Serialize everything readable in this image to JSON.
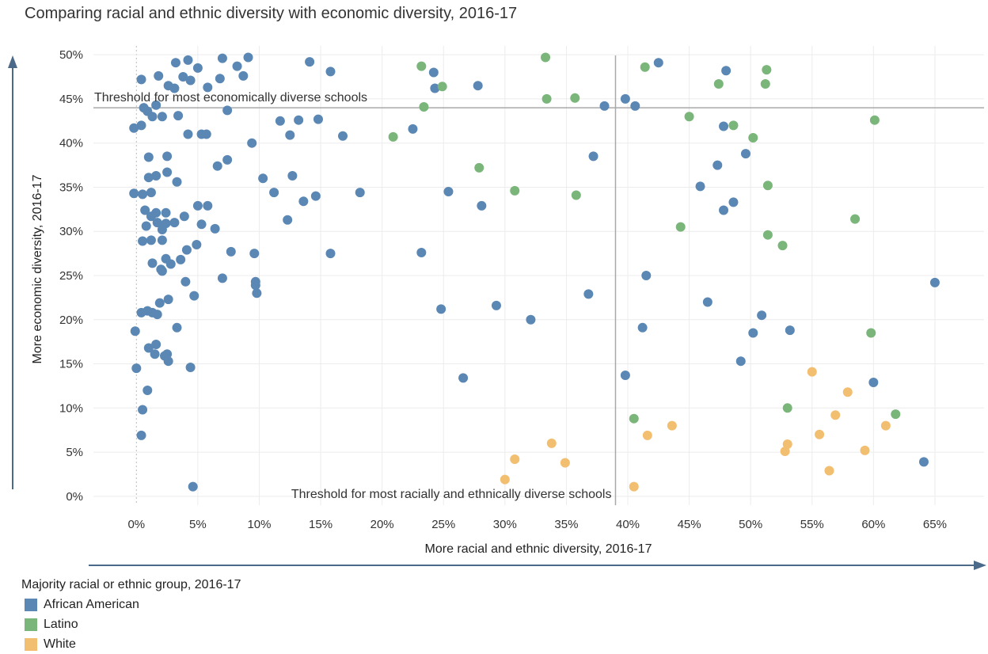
{
  "chart_data": {
    "type": "scatter",
    "title": "Comparing racial and ethnic diversity with economic diversity, 2016-17",
    "xlabel": "More racial and ethnic diversity, 2016-17",
    "ylabel": "More economic diversity, 2016-17",
    "x_ticks": [
      "0%",
      "5%",
      "10%",
      "15%",
      "20%",
      "25%",
      "30%",
      "35%",
      "40%",
      "45%",
      "50%",
      "55%",
      "60%",
      "65%"
    ],
    "y_ticks": [
      "0%",
      "5%",
      "10%",
      "15%",
      "20%",
      "25%",
      "30%",
      "35%",
      "40%",
      "45%",
      "50%"
    ],
    "xlim": [
      -3.5,
      69
    ],
    "ylim": [
      -1,
      51
    ],
    "grid": true,
    "thresholds": {
      "economic": {
        "value": 44,
        "label": "Threshold for most economically diverse schools"
      },
      "racial": {
        "value": 39,
        "label": "Threshold for most racially and ethnically diverse schools"
      }
    },
    "legend": {
      "title": "Majority racial or ethnic group, 2016-17",
      "position": "bottom-left"
    },
    "series": [
      {
        "name": "African American",
        "color": "#5a87b4",
        "points": [
          [
            0.4,
            47.2
          ],
          [
            1.8,
            47.6
          ],
          [
            3.2,
            49.1
          ],
          [
            4.2,
            49.4
          ],
          [
            5,
            48.5
          ],
          [
            7,
            49.6
          ],
          [
            8.2,
            48.7
          ],
          [
            9.1,
            49.7
          ],
          [
            8.7,
            47.6
          ],
          [
            6.8,
            47.3
          ],
          [
            4.4,
            47.1
          ],
          [
            3.8,
            47.5
          ],
          [
            2.6,
            46.5
          ],
          [
            3.1,
            46.2
          ],
          [
            5.8,
            46.3
          ],
          [
            14.1,
            49.2
          ],
          [
            15.8,
            48.1
          ],
          [
            24.2,
            48
          ],
          [
            42.5,
            49.1
          ],
          [
            48,
            48.2
          ],
          [
            24.3,
            46.2
          ],
          [
            27.8,
            46.5
          ],
          [
            0.6,
            44
          ],
          [
            0.9,
            43.6
          ],
          [
            1.3,
            43
          ],
          [
            2.1,
            43
          ],
          [
            3.4,
            43.1
          ],
          [
            1.6,
            44.3
          ],
          [
            7.4,
            43.7
          ],
          [
            -0.2,
            41.7
          ],
          [
            0.4,
            42
          ],
          [
            4.2,
            41
          ],
          [
            5.3,
            41
          ],
          [
            5.7,
            41
          ],
          [
            11.7,
            42.5
          ],
          [
            13.2,
            42.6
          ],
          [
            14.8,
            42.7
          ],
          [
            12.5,
            40.9
          ],
          [
            16.8,
            40.8
          ],
          [
            9.4,
            40
          ],
          [
            22.5,
            41.6
          ],
          [
            38.1,
            44.2
          ],
          [
            39.8,
            45
          ],
          [
            40.6,
            44.2
          ],
          [
            47.8,
            41.9
          ],
          [
            47.3,
            37.5
          ],
          [
            49.6,
            38.8
          ],
          [
            37.2,
            38.5
          ],
          [
            45.9,
            35.1
          ],
          [
            48.6,
            33.3
          ],
          [
            47.8,
            32.4
          ],
          [
            1,
            38.4
          ],
          [
            2.5,
            38.5
          ],
          [
            7.4,
            38.1
          ],
          [
            6.6,
            37.4
          ],
          [
            2.5,
            36.7
          ],
          [
            1.6,
            36.3
          ],
          [
            1,
            36.1
          ],
          [
            3.3,
            35.6
          ],
          [
            10.3,
            36
          ],
          [
            12.7,
            36.3
          ],
          [
            -0.2,
            34.3
          ],
          [
            0.5,
            34.2
          ],
          [
            1.2,
            34.4
          ],
          [
            11.2,
            34.4
          ],
          [
            14.6,
            34
          ],
          [
            13.6,
            33.4
          ],
          [
            18.2,
            34.4
          ],
          [
            25.4,
            34.5
          ],
          [
            28.1,
            32.9
          ],
          [
            0.7,
            32.4
          ],
          [
            1.2,
            31.7
          ],
          [
            1.6,
            32.1
          ],
          [
            2.4,
            32.1
          ],
          [
            5,
            32.9
          ],
          [
            5.8,
            32.9
          ],
          [
            3.9,
            31.7
          ],
          [
            1.7,
            31
          ],
          [
            3.1,
            31
          ],
          [
            2.4,
            30.9
          ],
          [
            5.3,
            30.8
          ],
          [
            0.8,
            30.6
          ],
          [
            2.1,
            30.2
          ],
          [
            6.4,
            30.3
          ],
          [
            12.3,
            31.3
          ],
          [
            0.5,
            28.9
          ],
          [
            1.2,
            29
          ],
          [
            2.1,
            29
          ],
          [
            4.9,
            28.5
          ],
          [
            4.1,
            27.9
          ],
          [
            7.7,
            27.7
          ],
          [
            9.6,
            27.5
          ],
          [
            15.8,
            27.5
          ],
          [
            23.2,
            27.6
          ],
          [
            2.4,
            26.9
          ],
          [
            3.6,
            26.8
          ],
          [
            1.3,
            26.4
          ],
          [
            2.8,
            26.3
          ],
          [
            2.1,
            25.5
          ],
          [
            2,
            25.7
          ],
          [
            7,
            24.7
          ],
          [
            4,
            24.3
          ],
          [
            9.7,
            24.3
          ],
          [
            9.7,
            23.9
          ],
          [
            9.8,
            23
          ],
          [
            4.7,
            22.7
          ],
          [
            2.6,
            22.3
          ],
          [
            1.9,
            21.9
          ],
          [
            24.8,
            21.2
          ],
          [
            29.3,
            21.6
          ],
          [
            36.8,
            22.9
          ],
          [
            41.5,
            25
          ],
          [
            46.5,
            22
          ],
          [
            65,
            24.2
          ],
          [
            0.4,
            20.8
          ],
          [
            0.9,
            21
          ],
          [
            1.3,
            20.8
          ],
          [
            1.7,
            20.6
          ],
          [
            32.1,
            20
          ],
          [
            50.9,
            20.5
          ],
          [
            -0.1,
            18.7
          ],
          [
            3.3,
            19.1
          ],
          [
            41.2,
            19.1
          ],
          [
            50.2,
            18.5
          ],
          [
            53.2,
            18.8
          ],
          [
            1,
            16.8
          ],
          [
            1.6,
            17.2
          ],
          [
            1.5,
            16.1
          ],
          [
            2.3,
            15.9
          ],
          [
            2.5,
            16.1
          ],
          [
            2.6,
            15.3
          ],
          [
            49.2,
            15.3
          ],
          [
            4.4,
            14.6
          ],
          [
            0,
            14.5
          ],
          [
            26.6,
            13.4
          ],
          [
            39.8,
            13.7
          ],
          [
            60,
            12.9
          ],
          [
            0.9,
            12
          ],
          [
            0.5,
            9.8
          ],
          [
            0.4,
            6.9
          ],
          [
            64.1,
            3.9
          ],
          [
            4.6,
            1.1
          ]
        ]
      },
      {
        "name": "Latino",
        "color": "#7ab57a",
        "points": [
          [
            33.3,
            49.7
          ],
          [
            23.2,
            48.7
          ],
          [
            41.4,
            48.6
          ],
          [
            51.3,
            48.3
          ],
          [
            24.9,
            46.4
          ],
          [
            47.4,
            46.7
          ],
          [
            51.2,
            46.7
          ],
          [
            33.4,
            45
          ],
          [
            35.7,
            45.1
          ],
          [
            23.4,
            44.1
          ],
          [
            45,
            43
          ],
          [
            60.1,
            42.6
          ],
          [
            48.6,
            42
          ],
          [
            50.2,
            40.6
          ],
          [
            20.9,
            40.7
          ],
          [
            27.9,
            37.2
          ],
          [
            30.8,
            34.6
          ],
          [
            35.8,
            34.1
          ],
          [
            51.4,
            35.2
          ],
          [
            58.5,
            31.4
          ],
          [
            44.3,
            30.5
          ],
          [
            51.4,
            29.6
          ],
          [
            52.6,
            28.4
          ],
          [
            59.8,
            18.5
          ],
          [
            53,
            10
          ],
          [
            61.8,
            9.3
          ],
          [
            40.5,
            8.8
          ]
        ]
      },
      {
        "name": "White",
        "color": "#f2be70",
        "points": [
          [
            55,
            14.1
          ],
          [
            57.9,
            11.8
          ],
          [
            56.9,
            9.2
          ],
          [
            61,
            8
          ],
          [
            55.6,
            7
          ],
          [
            43.6,
            8
          ],
          [
            41.6,
            6.9
          ],
          [
            33.8,
            6
          ],
          [
            53,
            5.9
          ],
          [
            52.8,
            5.1
          ],
          [
            59.3,
            5.2
          ],
          [
            30.8,
            4.2
          ],
          [
            34.9,
            3.8
          ],
          [
            56.4,
            2.9
          ],
          [
            30,
            1.9
          ],
          [
            40.5,
            1.1
          ]
        ]
      }
    ]
  }
}
